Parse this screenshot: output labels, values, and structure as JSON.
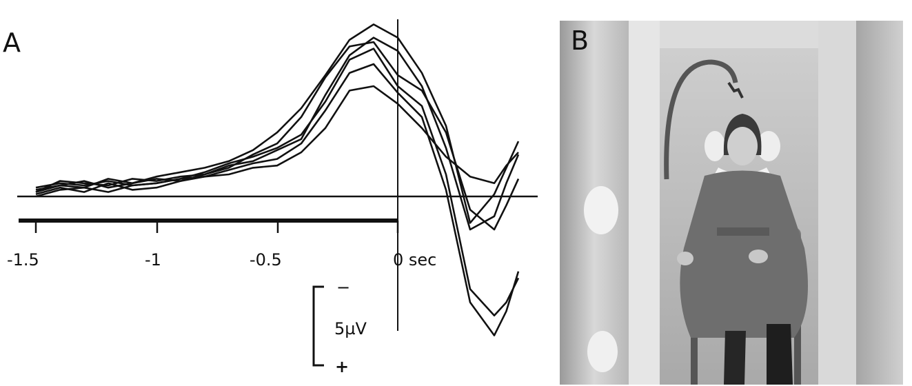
{
  "panel_a": {
    "label": "A",
    "x_ticks": [
      "-1.5",
      "-1",
      "-0.5",
      "0 sec"
    ],
    "scale_bar": {
      "minus": "−",
      "value": "5µV",
      "plus": "+"
    }
  },
  "panel_b": {
    "label": "B"
  },
  "chart_data": {
    "type": "line",
    "x_tick_values": [
      -1.5,
      -1,
      -0.5,
      0
    ],
    "xlabel": "sec",
    "xlim": [
      -1.58,
      0.55
    ],
    "scale_bar_uV": 5,
    "polarity": "negative up",
    "grid": false,
    "series": [
      {
        "x": [
          -1.5,
          -1.4,
          -1.3,
          -1.2,
          -1.1,
          -1,
          -0.9,
          -0.8,
          -0.7,
          -0.6,
          -0.5,
          -0.4,
          -0.3,
          -0.2,
          -0.1,
          0,
          0.1,
          0.2,
          0.3,
          0.4,
          0.45,
          0.5
        ],
        "y": [
          0.3,
          0.5,
          0.4,
          0.8,
          0.6,
          0.9,
          1.1,
          1.3,
          1.6,
          2.1,
          2.9,
          4.0,
          5.5,
          7.1,
          7.8,
          7.2,
          5.6,
          3.2,
          -1.2,
          0.1,
          1.3,
          2.5
        ]
      },
      {
        "x": [
          -1.5,
          -1.4,
          -1.3,
          -1.2,
          -1.1,
          -1,
          -0.9,
          -0.8,
          -0.7,
          -0.6,
          -0.5,
          -0.4,
          -0.3,
          -0.2,
          -0.1,
          0,
          0.1,
          0.2,
          0.3,
          0.4,
          0.45,
          0.5
        ],
        "y": [
          0.2,
          0.7,
          0.6,
          0.5,
          0.8,
          0.7,
          0.9,
          1.0,
          1.3,
          1.9,
          2.4,
          3.6,
          5.4,
          6.8,
          7.0,
          5.5,
          4.8,
          2.9,
          -0.6,
          -1.5,
          -0.4,
          0.8
        ]
      },
      {
        "x": [
          -1.5,
          -1.4,
          -1.3,
          -1.2,
          -1.1,
          -1,
          -0.9,
          -0.8,
          -0.7,
          -0.6,
          -0.5,
          -0.4,
          -0.3,
          -0.2,
          -0.1,
          0,
          0.1,
          0.2,
          0.3,
          0.4,
          0.45,
          0.5
        ],
        "y": [
          0.0,
          0.3,
          0.4,
          0.2,
          0.5,
          0.6,
          0.8,
          1.1,
          1.5,
          1.8,
          2.2,
          2.8,
          4.3,
          6.2,
          6.7,
          5.0,
          4.1,
          1.0,
          -4.2,
          -5.4,
          -4.8,
          -3.7
        ]
      },
      {
        "x": [
          -1.5,
          -1.4,
          -1.3,
          -1.2,
          -1.1,
          -1,
          -0.9,
          -0.8,
          -0.7,
          -0.6,
          -0.5,
          -0.4,
          -0.3,
          -0.2,
          -0.1,
          0,
          0.1,
          0.2,
          0.3,
          0.4,
          0.45,
          0.5
        ],
        "y": [
          0.1,
          0.4,
          0.2,
          0.6,
          0.3,
          0.4,
          0.7,
          0.9,
          1.2,
          1.5,
          1.7,
          2.4,
          3.9,
          5.6,
          6.0,
          4.7,
          3.6,
          0.3,
          -4.8,
          -6.3,
          -5.2,
          -3.4
        ]
      },
      {
        "x": [
          -1.5,
          -1.4,
          -1.3,
          -1.2,
          -1.1,
          -1,
          -0.9,
          -0.8,
          -0.7,
          -0.6,
          -0.5,
          -0.4,
          -0.3,
          -0.2,
          -0.1,
          0,
          0.1,
          0.2,
          0.3,
          0.4,
          0.45,
          0.5
        ],
        "y": [
          0.4,
          0.6,
          0.5,
          0.7,
          0.5,
          0.6,
          0.8,
          0.9,
          1.0,
          1.3,
          1.4,
          2.0,
          3.1,
          4.8,
          5.0,
          4.2,
          3.1,
          1.8,
          0.9,
          0.6,
          1.4,
          2.0
        ]
      },
      {
        "x": [
          -1.5,
          -1.4,
          -1.3,
          -1.2,
          -1.1,
          -1,
          -0.9,
          -0.8,
          -0.7,
          -0.6,
          -0.5,
          -0.4,
          -0.3,
          -0.2,
          -0.1,
          0,
          0.1,
          0.2,
          0.3,
          0.4,
          0.45,
          0.5
        ],
        "y": [
          0.2,
          0.5,
          0.7,
          0.4,
          0.6,
          0.8,
          0.7,
          1.0,
          1.4,
          1.6,
          2.1,
          2.6,
          4.6,
          6.4,
          7.2,
          6.6,
          5.0,
          2.2,
          -1.5,
          -0.9,
          0.6,
          1.9
        ]
      }
    ]
  }
}
